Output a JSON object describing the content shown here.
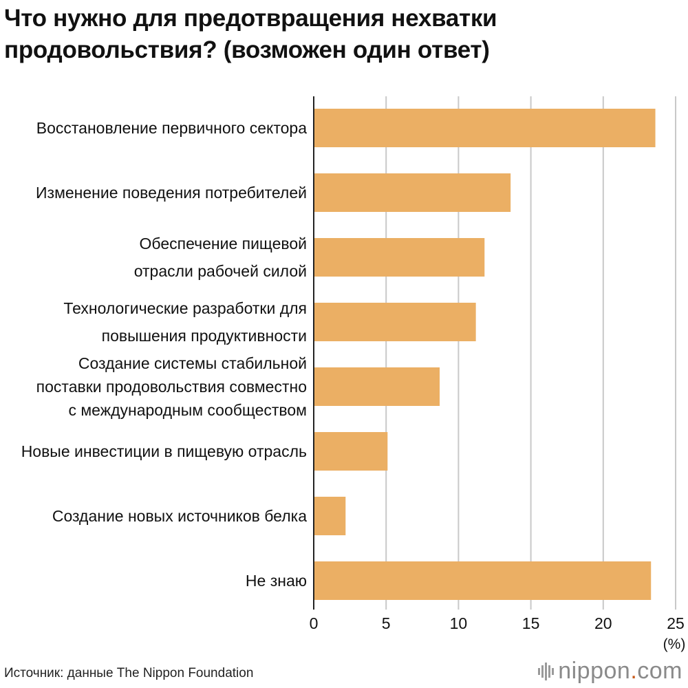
{
  "chart_data": {
    "type": "bar",
    "orientation": "horizontal",
    "title": "Что нужно для предотвращения нехватки продовольствия? (возможен один ответ)",
    "title_lines": [
      "Что нужно для предотвращения нехватки",
      "продовольствия? (возможен один ответ)"
    ],
    "categories": [
      [
        "Восстановление первичного сектора"
      ],
      [
        "Изменение поведения потребителей"
      ],
      [
        "Обеспечение пищевой",
        "отрасли рабочей силой"
      ],
      [
        "Технологические разработки для",
        "повышения продуктивности"
      ],
      [
        "Создание системы стабильной",
        "поставки продовольствия совместно",
        "с международным сообществом"
      ],
      [
        "Новые инвестиции в пищевую отрасль"
      ],
      [
        "Создание новых источников белка"
      ],
      [
        "Не знаю"
      ]
    ],
    "values": [
      23.6,
      13.6,
      11.8,
      11.2,
      8.7,
      5.1,
      2.2,
      23.3
    ],
    "xlim": [
      0,
      25
    ],
    "xticks": [
      0,
      5,
      10,
      15,
      20,
      25
    ],
    "xtick_labels": [
      "0",
      "5",
      "10",
      "15",
      "20",
      "25"
    ],
    "xunit": "(%)",
    "grid": true,
    "bar_color": "#ebaf64",
    "grid_color": "#c8c8c8",
    "axis_color": "#222222"
  },
  "footer": {
    "source": "Источник: данные The Nippon Foundation",
    "brand_main": "nippon",
    "brand_dot": ".",
    "brand_suffix": "com"
  }
}
